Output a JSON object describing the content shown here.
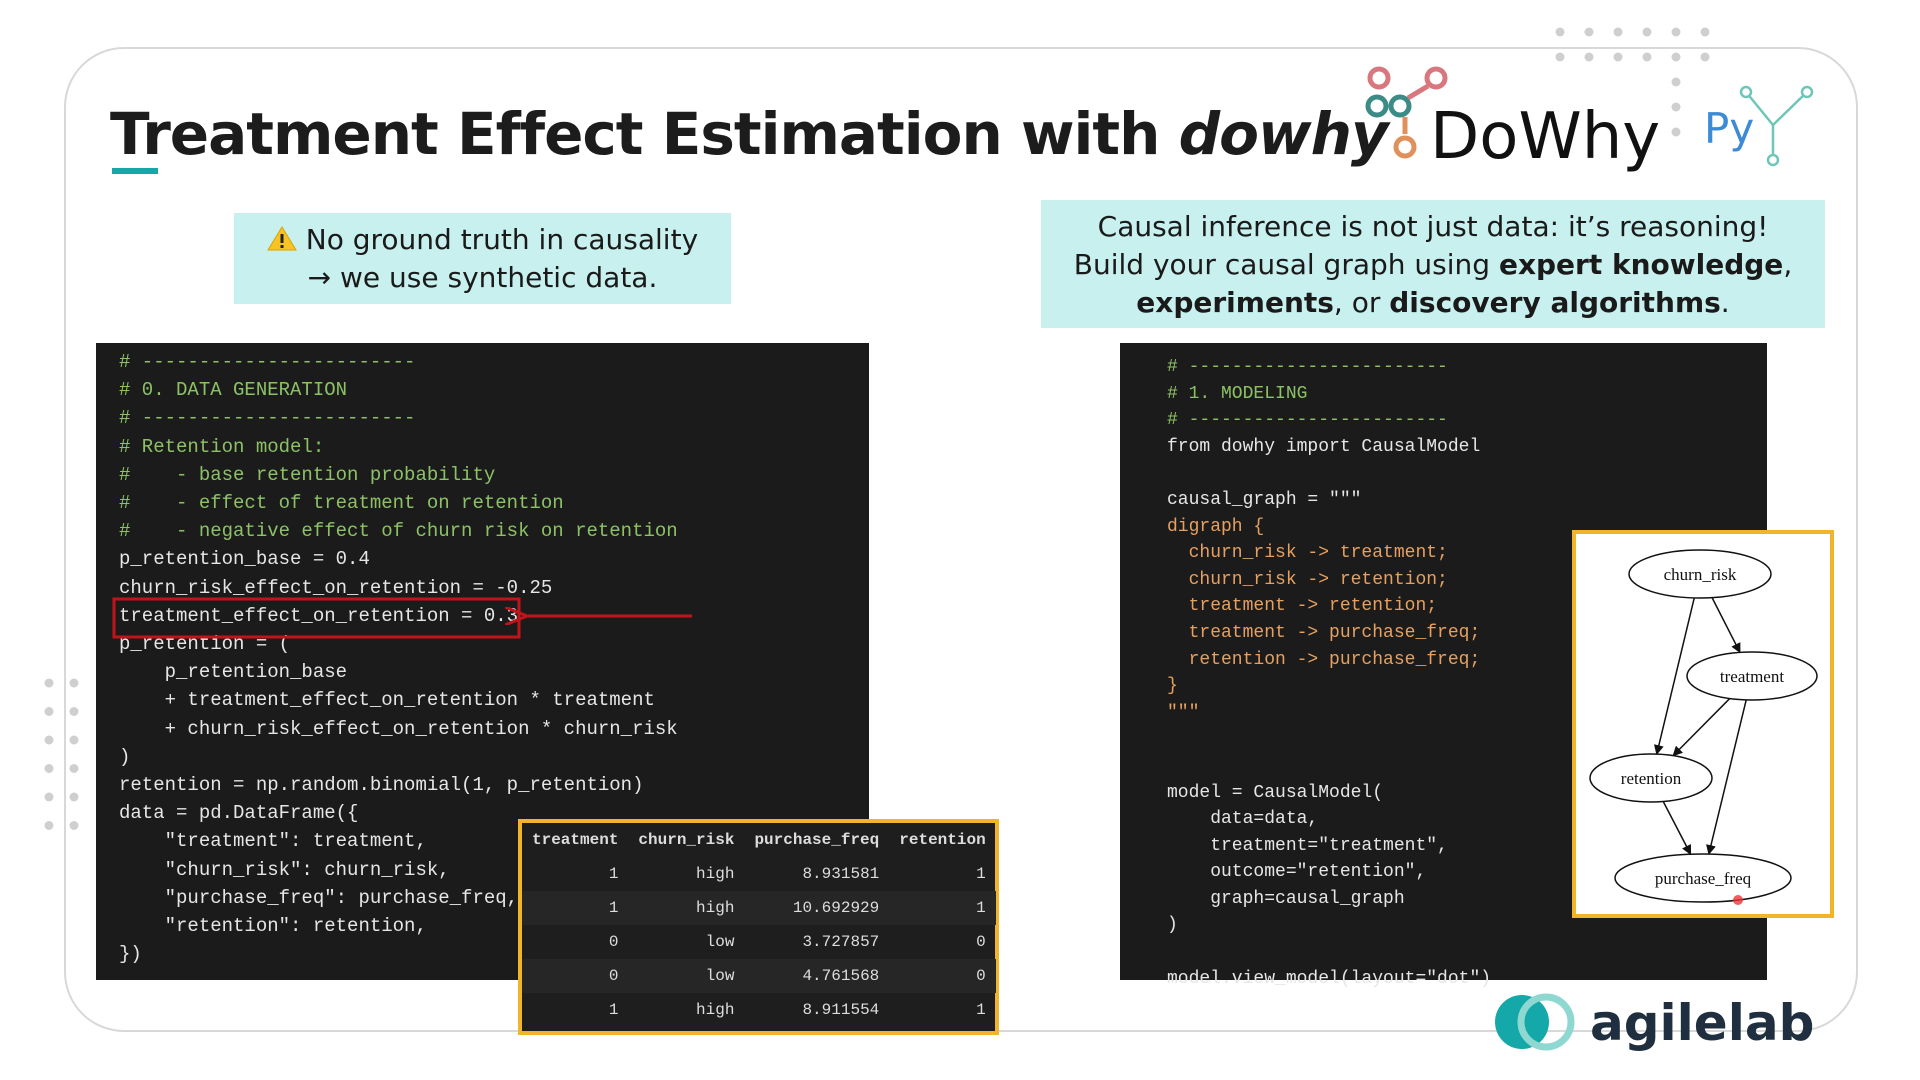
{
  "title_main": "Treatment Effect Estimation with ",
  "title_emph": "dowhy",
  "logos": {
    "dowhy": "DoWhy",
    "py": "Py",
    "agilelab": "agilelab"
  },
  "note_left": [
    "No ground truth in causality",
    "→ we use synthetic data."
  ],
  "note_right": [
    "Causal inference is not just data: it’s reasoning!",
    "Build your causal graph using ",
    "expert knowledge",
    ",",
    "experiments",
    ", or ",
    "discovery algorithms",
    "."
  ],
  "code_left": [
    "# ------------------------",
    "# 0. DATA GENERATION",
    "# ------------------------",
    "# Retention model:",
    "#    - base retention probability",
    "#    - effect of treatment on retention",
    "#    - negative effect of churn risk on retention",
    "p_retention_base = 0.4",
    "churn_risk_effect_on_retention = -0.25",
    "treatment_effect_on_retention = 0.3",
    "p_retention = (",
    "    p_retention_base",
    "    + treatment_effect_on_retention * treatment",
    "    + churn_risk_effect_on_retention * churn_risk",
    ")",
    "retention = np.random.binomial(1, p_retention)",
    "data = pd.DataFrame({",
    "    \"treatment\": treatment,",
    "    \"churn_risk\": churn_risk,",
    "    \"purchase_freq\": purchase_freq,",
    "    \"retention\": retention,",
    "})"
  ],
  "code_right": [
    "# ------------------------",
    "# 1. MODELING",
    "# ------------------------",
    "from dowhy import CausalModel",
    "",
    "causal_graph = \"\"\"",
    "digraph {",
    "  churn_risk -> treatment;",
    "  churn_risk -> retention;",
    "  treatment -> retention;",
    "  treatment -> purchase_freq;",
    "  retention -> purchase_freq;",
    "}",
    "\"\"\"",
    "",
    "",
    "model = CausalModel(",
    "    data=data,",
    "    treatment=\"treatment\",",
    "    outcome=\"retention\",",
    "    graph=causal_graph",
    ")",
    "",
    "model.view_model(layout=\"dot\")"
  ],
  "table": {
    "columns": [
      "treatment",
      "churn_risk",
      "purchase_freq",
      "retention"
    ],
    "rows": [
      [
        1,
        "high",
        8.931581,
        1
      ],
      [
        1,
        "high",
        10.692929,
        1
      ],
      [
        0,
        "low",
        3.727857,
        0
      ],
      [
        0,
        "low",
        4.761568,
        0
      ],
      [
        1,
        "high",
        8.911554,
        1
      ]
    ]
  },
  "graph": {
    "nodes": [
      "churn_risk",
      "treatment",
      "retention",
      "purchase_freq"
    ]
  }
}
